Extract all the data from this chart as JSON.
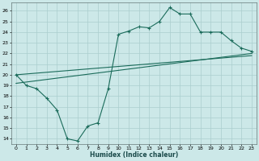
{
  "xlabel": "Humidex (Indice chaleur)",
  "ylabel": "",
  "bg_color": "#cce8e8",
  "grid_color": "#aacece",
  "line_color": "#1a6b5a",
  "xlim": [
    -0.5,
    23.5
  ],
  "ylim": [
    13.5,
    26.8
  ],
  "yticks": [
    14,
    15,
    16,
    17,
    18,
    19,
    20,
    21,
    22,
    23,
    24,
    25,
    26
  ],
  "xticks": [
    0,
    1,
    2,
    3,
    4,
    5,
    6,
    7,
    8,
    9,
    10,
    11,
    12,
    13,
    14,
    15,
    16,
    17,
    18,
    19,
    20,
    21,
    22,
    23
  ],
  "curve1_x": [
    0,
    1,
    2,
    3,
    4,
    5,
    6,
    7,
    8,
    9,
    10,
    11,
    12,
    13,
    14,
    15,
    16,
    17,
    18,
    19,
    20,
    21,
    22,
    23
  ],
  "curve1_y": [
    20.0,
    19.0,
    18.7,
    17.8,
    16.7,
    14.0,
    13.8,
    15.2,
    15.5,
    18.7,
    23.8,
    24.1,
    24.5,
    24.4,
    25.0,
    26.3,
    25.7,
    25.7,
    24.0,
    24.0,
    24.0,
    23.2,
    22.5,
    22.2
  ],
  "line1_x": [
    0,
    23
  ],
  "line1_y": [
    19.2,
    22.0
  ],
  "line2_x": [
    0,
    23
  ],
  "line2_y": [
    20.0,
    21.8
  ]
}
